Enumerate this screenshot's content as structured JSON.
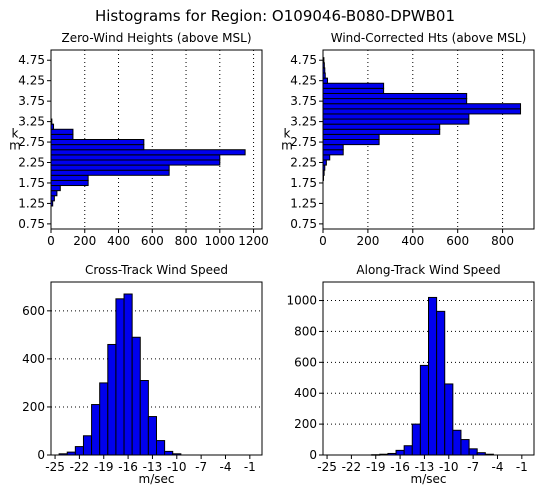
{
  "title": "Histograms for Region:  O109046-B080-DPWB01",
  "bar_color": "#0000ee",
  "chart_data": [
    {
      "type": "bar",
      "orientation": "horizontal",
      "title": "Zero-Wind Heights (above MSL)",
      "ylabel": "km",
      "xlabel": "",
      "xlim": [
        0,
        1250
      ],
      "xticks": [
        0,
        200,
        400,
        600,
        800,
        1000,
        1200
      ],
      "xtick_labels": [
        "0",
        "200",
        "400",
        "600",
        "800",
        "1000",
        "1200"
      ],
      "ylim": [
        0.625,
        5.0
      ],
      "yticks": [
        0.75,
        1.25,
        1.75,
        2.25,
        2.75,
        3.25,
        3.75,
        4.25,
        4.75
      ],
      "ytick_labels": [
        "0.75",
        "1.25",
        "1.75",
        "2.25",
        "2.75",
        "3.25",
        "3.75",
        "4.25",
        "4.75"
      ],
      "grid": "vertical",
      "bin_width": 0.125,
      "bin_centers": [
        1.25,
        1.375,
        1.5,
        1.625,
        1.75,
        1.875,
        2.0,
        2.125,
        2.25,
        2.375,
        2.5,
        2.625,
        2.75,
        2.875,
        3.0,
        3.125,
        3.25
      ],
      "values": [
        10,
        20,
        35,
        55,
        220,
        220,
        700,
        700,
        1000,
        1000,
        1150,
        550,
        550,
        130,
        130,
        15,
        5
      ]
    },
    {
      "type": "bar",
      "orientation": "horizontal",
      "title": "Wind-Corrected Hts (above MSL)",
      "ylabel": "km",
      "xlabel": "",
      "xlim": [
        0,
        940
      ],
      "xticks": [
        0,
        200,
        400,
        600,
        800
      ],
      "xtick_labels": [
        "0",
        "200",
        "400",
        "600",
        "800"
      ],
      "ylim": [
        0.625,
        5.0
      ],
      "yticks": [
        0.75,
        1.25,
        1.75,
        2.25,
        2.75,
        3.25,
        3.75,
        4.25,
        4.75
      ],
      "ytick_labels": [
        "0.75",
        "1.25",
        "1.75",
        "2.25",
        "2.75",
        "3.25",
        "3.75",
        "4.25",
        "4.75"
      ],
      "grid": "vertical",
      "bin_width": 0.125,
      "bin_centers": [
        1.875,
        2.0,
        2.125,
        2.25,
        2.375,
        2.5,
        2.625,
        2.75,
        2.875,
        3.0,
        3.125,
        3.25,
        3.375,
        3.5,
        3.625,
        3.75,
        3.875,
        4.0,
        4.125,
        4.25,
        4.375,
        4.5,
        4.625,
        4.75
      ],
      "values": [
        2,
        5,
        8,
        15,
        30,
        90,
        90,
        250,
        250,
        520,
        520,
        650,
        650,
        880,
        880,
        640,
        640,
        270,
        270,
        20,
        10,
        8,
        6,
        4
      ]
    },
    {
      "type": "bar",
      "orientation": "vertical",
      "title": "Cross-Track Wind Speed",
      "xlabel": "m/sec",
      "ylabel": "",
      "xlim": [
        -25.5,
        0.5
      ],
      "xticks": [
        -25,
        -22,
        -19,
        -16,
        -13,
        -10,
        -7,
        -4,
        -1
      ],
      "xtick_labels": [
        "-25",
        "-22",
        "-19",
        "-16",
        "-13",
        "-10",
        "-7",
        "-4",
        "-1"
      ],
      "ylim": [
        0,
        720
      ],
      "yticks": [
        0,
        200,
        400,
        600
      ],
      "ytick_labels": [
        "0",
        "200",
        "400",
        "600"
      ],
      "grid": "horizontal",
      "bin_width": 1,
      "bin_centers": [
        -24,
        -23,
        -22,
        -21,
        -20,
        -19,
        -18,
        -17,
        -16,
        -15,
        -14,
        -13,
        -12,
        -11,
        -10
      ],
      "values": [
        5,
        12,
        35,
        80,
        210,
        300,
        460,
        650,
        670,
        490,
        310,
        160,
        60,
        15,
        5
      ]
    },
    {
      "type": "bar",
      "orientation": "vertical",
      "title": "Along-Track Wind Speed",
      "xlabel": "m/sec",
      "ylabel": "",
      "xlim": [
        -25.5,
        0.5
      ],
      "xticks": [
        -25,
        -22,
        -19,
        -16,
        -13,
        -10,
        -7,
        -4,
        -1
      ],
      "xtick_labels": [
        "-25",
        "-22",
        "-19",
        "-16",
        "-13",
        "-10",
        "-7",
        "-4",
        "-1"
      ],
      "ylim": [
        0,
        1120
      ],
      "yticks": [
        0,
        200,
        400,
        600,
        800,
        1000
      ],
      "ytick_labels": [
        "0",
        "200",
        "400",
        "600",
        "800",
        "1000"
      ],
      "grid": "horizontal",
      "bin_width": 1,
      "bin_centers": [
        -19,
        -18,
        -17,
        -16,
        -15,
        -14,
        -13,
        -12,
        -11,
        -10,
        -9,
        -8,
        -7,
        -6,
        -5
      ],
      "values": [
        2,
        5,
        10,
        30,
        60,
        200,
        580,
        1020,
        930,
        460,
        160,
        100,
        40,
        15,
        5
      ]
    }
  ]
}
